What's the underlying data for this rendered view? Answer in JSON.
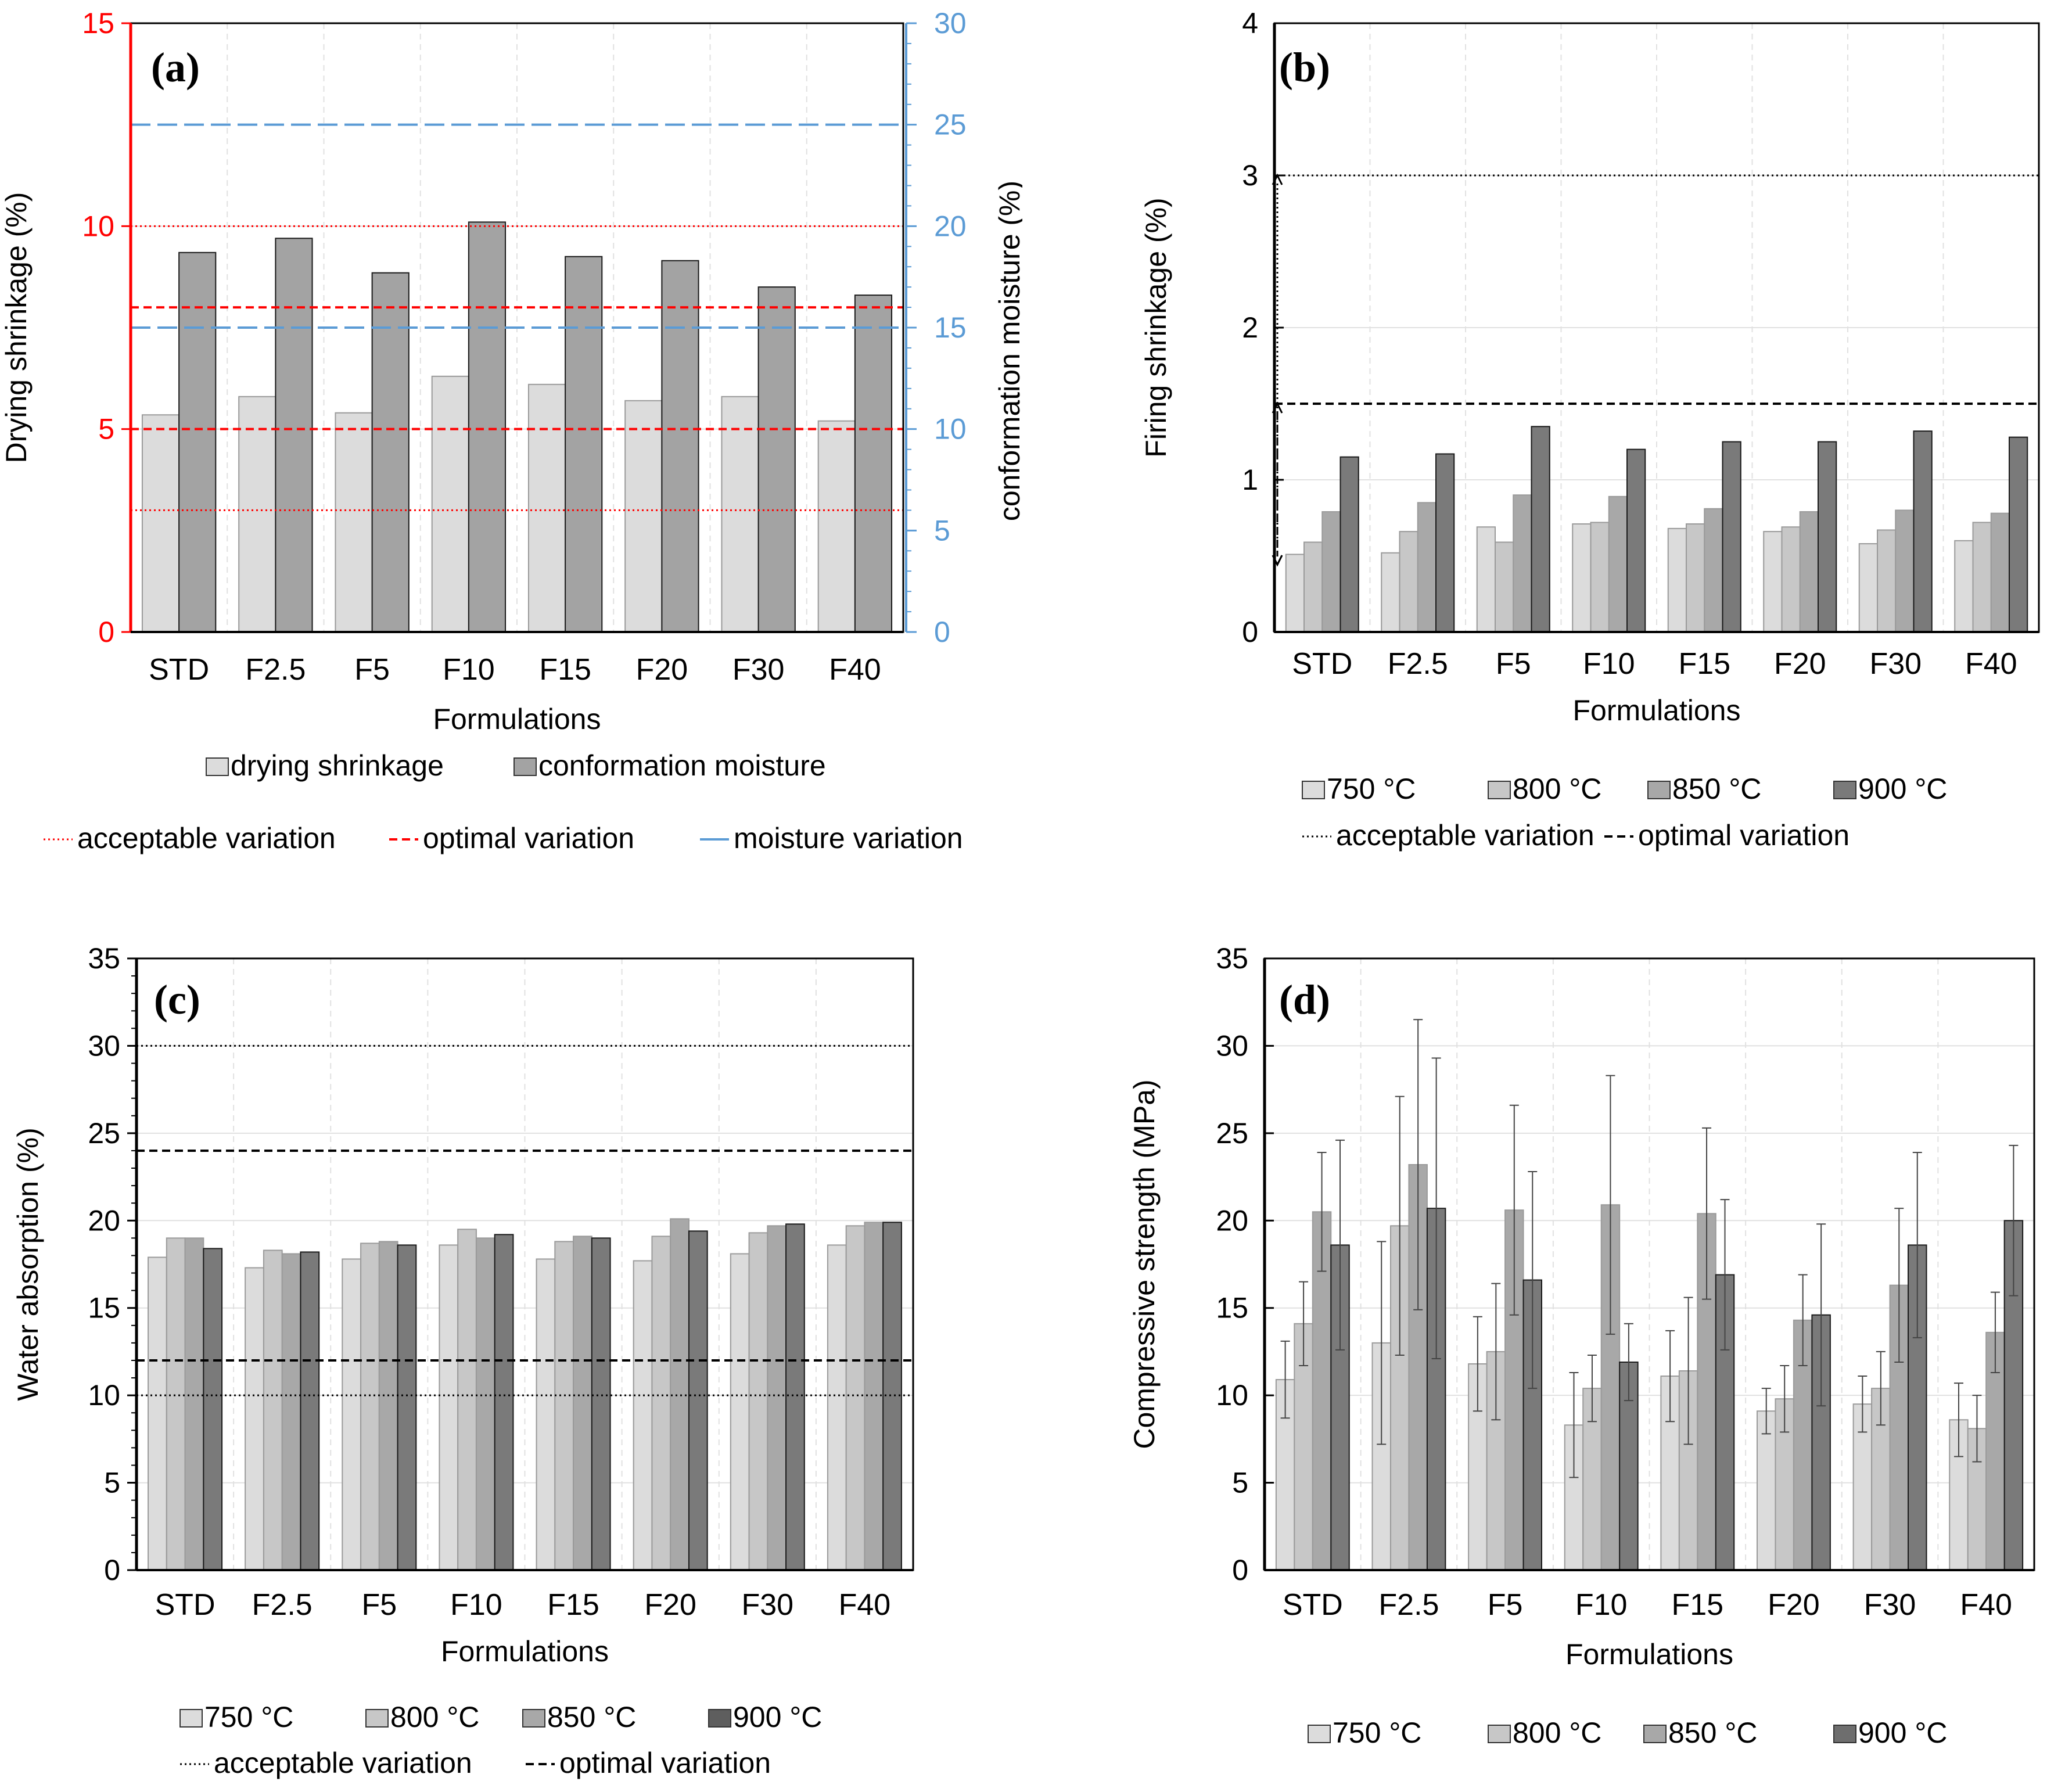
{
  "styles": {
    "axis_red": "#ff0000",
    "axis_blue": "#5b9bd5",
    "gray_750": "#dcdcdc",
    "gray_800": "#c7c7c7",
    "gray_850": "#a8a8a8",
    "gray_900": "#7a7a7a",
    "drying": "#dcdcdc",
    "moisture": "#a3a3a3",
    "grid": "#e1e1e1"
  },
  "chart_data": [
    {
      "id": "a",
      "panel_label": "(a)",
      "type": "bar",
      "xlabel": "Formulations",
      "ylabel": "Drying shrinkage (%)",
      "y2label": "conformation moisture (%)",
      "ylim": [
        0,
        15
      ],
      "yticks": [
        0,
        5,
        10,
        15
      ],
      "y2lim": [
        0,
        30
      ],
      "y2ticks": [
        0,
        5,
        10,
        15,
        20,
        25,
        30
      ],
      "categories": [
        "STD",
        "F2.5",
        "F5",
        "F10",
        "F15",
        "F20",
        "F30",
        "F40"
      ],
      "series": [
        {
          "name": "drying shrinkage",
          "axis": "left",
          "color": "#dcdcdc",
          "values": [
            5.35,
            5.8,
            5.4,
            6.3,
            6.1,
            5.7,
            5.8,
            5.2
          ]
        },
        {
          "name": "conformation moisture",
          "axis": "right",
          "color": "#a3a3a3",
          "values": [
            18.7,
            19.4,
            17.7,
            20.2,
            18.5,
            18.3,
            17.0,
            16.6
          ]
        }
      ],
      "reference_lines": [
        {
          "name": "acceptable variation",
          "axis": "left",
          "values": [
            3,
            10
          ],
          "style": "dotted",
          "color": "#ff0000"
        },
        {
          "name": "optimal variation",
          "axis": "left",
          "values": [
            5,
            8
          ],
          "style": "dashed",
          "color": "#ff0000"
        },
        {
          "name": "moisture variation",
          "axis": "right",
          "values": [
            15,
            25
          ],
          "style": "longdash",
          "color": "#5b9bd5"
        }
      ],
      "legend_rows": [
        [
          {
            "type": "box",
            "label": "drying shrinkage",
            "color": "#dcdcdc"
          },
          {
            "type": "box",
            "label": "conformation moisture",
            "color": "#a3a3a3"
          }
        ],
        [
          {
            "type": "line",
            "style": "dotted",
            "color": "#ff0000",
            "label": "acceptable variation"
          },
          {
            "type": "line",
            "style": "dashed",
            "color": "#ff0000",
            "label": "optimal variation"
          },
          {
            "type": "line",
            "style": "solid",
            "color": "#5b9bd5",
            "label": "moisture variation"
          }
        ]
      ],
      "legend_position": "bottom"
    },
    {
      "id": "b",
      "panel_label": "(b)",
      "type": "bar",
      "xlabel": "Formulations",
      "ylabel": "Firing shrinkage (%)",
      "ylim": [
        0,
        4
      ],
      "yticks": [
        0,
        1,
        2,
        3,
        4
      ],
      "categories": [
        "STD",
        "F2.5",
        "F5",
        "F10",
        "F15",
        "F20",
        "F30",
        "F40"
      ],
      "series": [
        {
          "name": "750 °C",
          "color": "#dcdcdc",
          "values": [
            0.51,
            0.52,
            0.69,
            0.71,
            0.68,
            0.66,
            0.58,
            0.6
          ]
        },
        {
          "name": "800 °C",
          "color": "#c7c7c7",
          "values": [
            0.59,
            0.66,
            0.59,
            0.72,
            0.71,
            0.69,
            0.67,
            0.72
          ]
        },
        {
          "name": "850 °C",
          "color": "#a8a8a8",
          "values": [
            0.79,
            0.85,
            0.9,
            0.89,
            0.81,
            0.79,
            0.8,
            0.78
          ]
        },
        {
          "name": "900 °C",
          "color": "#7a7a7a",
          "values": [
            1.15,
            1.17,
            1.35,
            1.2,
            1.25,
            1.25,
            1.32,
            1.28
          ]
        }
      ],
      "reference_lines": [
        {
          "name": "acceptable variation",
          "values": [
            3
          ],
          "style": "dotted",
          "color": "#000000"
        },
        {
          "name": "optimal variation",
          "values": [
            1.5
          ],
          "style": "dashed",
          "color": "#000000"
        }
      ],
      "annotations": [
        {
          "type": "range-arrow",
          "from": 0.5,
          "to": 3,
          "style": "dotted"
        },
        {
          "type": "range-arrow",
          "from": 0.5,
          "to": 1.5,
          "style": "dashed"
        }
      ],
      "legend_rows": [
        [
          {
            "type": "box",
            "label": "750 °C",
            "color": "#dcdcdc"
          },
          {
            "type": "box",
            "label": "800 °C",
            "color": "#c7c7c7"
          },
          {
            "type": "box",
            "label": "850 °C",
            "color": "#a8a8a8"
          },
          {
            "type": "box",
            "label": "900 °C",
            "color": "#7a7a7a"
          }
        ],
        [
          {
            "type": "line",
            "style": "dotted",
            "color": "#000000",
            "label": "acceptable variation"
          },
          {
            "type": "line",
            "style": "dashed",
            "color": "#000000",
            "label": "optimal variation"
          }
        ]
      ],
      "legend_position": "bottom"
    },
    {
      "id": "c",
      "panel_label": "(c)",
      "type": "bar",
      "xlabel": "Formulations",
      "ylabel": "Water absorption (%)",
      "ylim": [
        0,
        35
      ],
      "yticks": [
        0,
        5,
        10,
        15,
        20,
        25,
        30,
        35
      ],
      "categories": [
        "STD",
        "F2.5",
        "F5",
        "F10",
        "F15",
        "F20",
        "F30",
        "F40"
      ],
      "series": [
        {
          "name": "750 °C",
          "color": "#dcdcdc",
          "values": [
            17.9,
            17.3,
            17.8,
            18.6,
            17.8,
            17.7,
            18.1,
            18.6
          ]
        },
        {
          "name": "800 °C",
          "color": "#c7c7c7",
          "values": [
            19.0,
            18.3,
            18.7,
            19.5,
            18.8,
            19.1,
            19.3,
            19.7
          ]
        },
        {
          "name": "850 °C",
          "color": "#a8a8a8",
          "values": [
            19.0,
            18.1,
            18.8,
            19.0,
            19.1,
            20.1,
            19.7,
            19.9
          ]
        },
        {
          "name": "900 °C",
          "color": "#7a7a7a",
          "values": [
            18.4,
            18.2,
            18.6,
            19.2,
            19.0,
            19.4,
            19.8,
            19.9
          ]
        }
      ],
      "reference_lines": [
        {
          "name": "acceptable variation",
          "values": [
            10,
            30
          ],
          "style": "dotted",
          "color": "#000000"
        },
        {
          "name": "optimal variation",
          "values": [
            12,
            24
          ],
          "style": "dashed",
          "color": "#000000"
        }
      ],
      "legend_rows": [
        [
          {
            "type": "box",
            "label": "750 °C",
            "color": "#dcdcdc"
          },
          {
            "type": "box",
            "label": "800 °C",
            "color": "#c7c7c7"
          },
          {
            "type": "box",
            "label": "850 °C",
            "color": "#a8a8a8"
          },
          {
            "type": "box",
            "label": "900 °C",
            "color": "#5e5e5e"
          }
        ],
        [
          {
            "type": "line",
            "style": "dotted",
            "color": "#000000",
            "label": "acceptable variation"
          },
          {
            "type": "line",
            "style": "dashed",
            "color": "#000000",
            "label": "optimal variation"
          }
        ]
      ],
      "legend_position": "bottom"
    },
    {
      "id": "d",
      "panel_label": "(d)",
      "type": "bar",
      "xlabel": "Formulations",
      "ylabel": "Compressive strength (MPa)",
      "ylim": [
        0,
        35
      ],
      "yticks": [
        0,
        5,
        10,
        15,
        20,
        25,
        30,
        35
      ],
      "categories": [
        "STD",
        "F2.5",
        "F5",
        "F10",
        "F15",
        "F20",
        "F30",
        "F40"
      ],
      "series": [
        {
          "name": "750 °C",
          "color": "#dcdcdc",
          "values": [
            10.9,
            13.0,
            11.8,
            8.3,
            11.1,
            9.1,
            9.5,
            8.6
          ],
          "errors": [
            2.2,
            5.8,
            2.7,
            3.0,
            2.6,
            1.3,
            1.6,
            2.1
          ]
        },
        {
          "name": "800 °C",
          "color": "#c7c7c7",
          "values": [
            14.1,
            19.7,
            12.5,
            10.4,
            11.4,
            9.8,
            10.4,
            8.1
          ],
          "errors": [
            2.4,
            7.4,
            3.9,
            1.9,
            4.2,
            1.9,
            2.1,
            1.9
          ]
        },
        {
          "name": "850 °C",
          "color": "#a8a8a8",
          "values": [
            20.5,
            23.2,
            20.6,
            20.9,
            20.4,
            14.3,
            16.3,
            13.6
          ],
          "errors": [
            3.4,
            8.3,
            6.0,
            7.4,
            4.9,
            2.6,
            4.4,
            2.3
          ]
        },
        {
          "name": "900 °C",
          "color": "#7a7a7a",
          "values": [
            18.6,
            20.7,
            16.6,
            11.9,
            16.9,
            14.6,
            18.6,
            20.0
          ],
          "errors": [
            6.0,
            8.6,
            6.2,
            2.2,
            4.3,
            5.2,
            5.3,
            4.3
          ]
        }
      ],
      "legend_rows": [
        [
          {
            "type": "box",
            "label": "750 °C",
            "color": "#dcdcdc"
          },
          {
            "type": "box",
            "label": "800 °C",
            "color": "#c7c7c7"
          },
          {
            "type": "box",
            "label": "850 °C",
            "color": "#a8a8a8"
          },
          {
            "type": "box",
            "label": "900 °C",
            "color": "#6e6e6e"
          }
        ]
      ],
      "legend_position": "bottom"
    }
  ]
}
